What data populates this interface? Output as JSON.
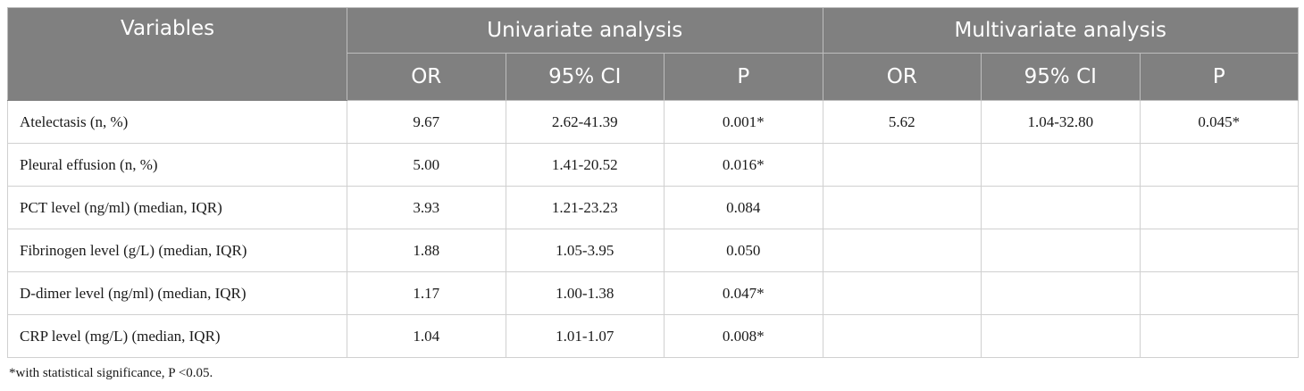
{
  "header": {
    "variables": "Variables",
    "univariate": "Univariate analysis",
    "multivariate": "Multivariate analysis",
    "or": "OR",
    "ci": "95% CI",
    "p": "P"
  },
  "rows": [
    {
      "variable": "Atelectasis (n, %)",
      "uni_or": "9.67",
      "uni_ci": "2.62-41.39",
      "uni_p": "0.001*",
      "multi_or": "5.62",
      "multi_ci": "1.04-32.80",
      "multi_p": "0.045*"
    },
    {
      "variable": "Pleural effusion (n, %)",
      "uni_or": "5.00",
      "uni_ci": "1.41-20.52",
      "uni_p": "0.016*",
      "multi_or": "",
      "multi_ci": "",
      "multi_p": ""
    },
    {
      "variable": "PCT level (ng/ml) (median, IQR)",
      "uni_or": "3.93",
      "uni_ci": "1.21-23.23",
      "uni_p": "0.084",
      "multi_or": "",
      "multi_ci": "",
      "multi_p": ""
    },
    {
      "variable": "Fibrinogen level (g/L) (median, IQR)",
      "uni_or": "1.88",
      "uni_ci": "1.05-3.95",
      "uni_p": "0.050",
      "multi_or": "",
      "multi_ci": "",
      "multi_p": ""
    },
    {
      "variable": "D-dimer level (ng/ml) (median, IQR)",
      "uni_or": "1.17",
      "uni_ci": "1.00-1.38",
      "uni_p": "0.047*",
      "multi_or": "",
      "multi_ci": "",
      "multi_p": ""
    },
    {
      "variable": "CRP level (mg/L) (median, IQR)",
      "uni_or": "1.04",
      "uni_ci": "1.01-1.07",
      "uni_p": "0.008*",
      "multi_or": "",
      "multi_ci": "",
      "multi_p": ""
    }
  ],
  "footnote": "*with statistical significance, P <0.05."
}
